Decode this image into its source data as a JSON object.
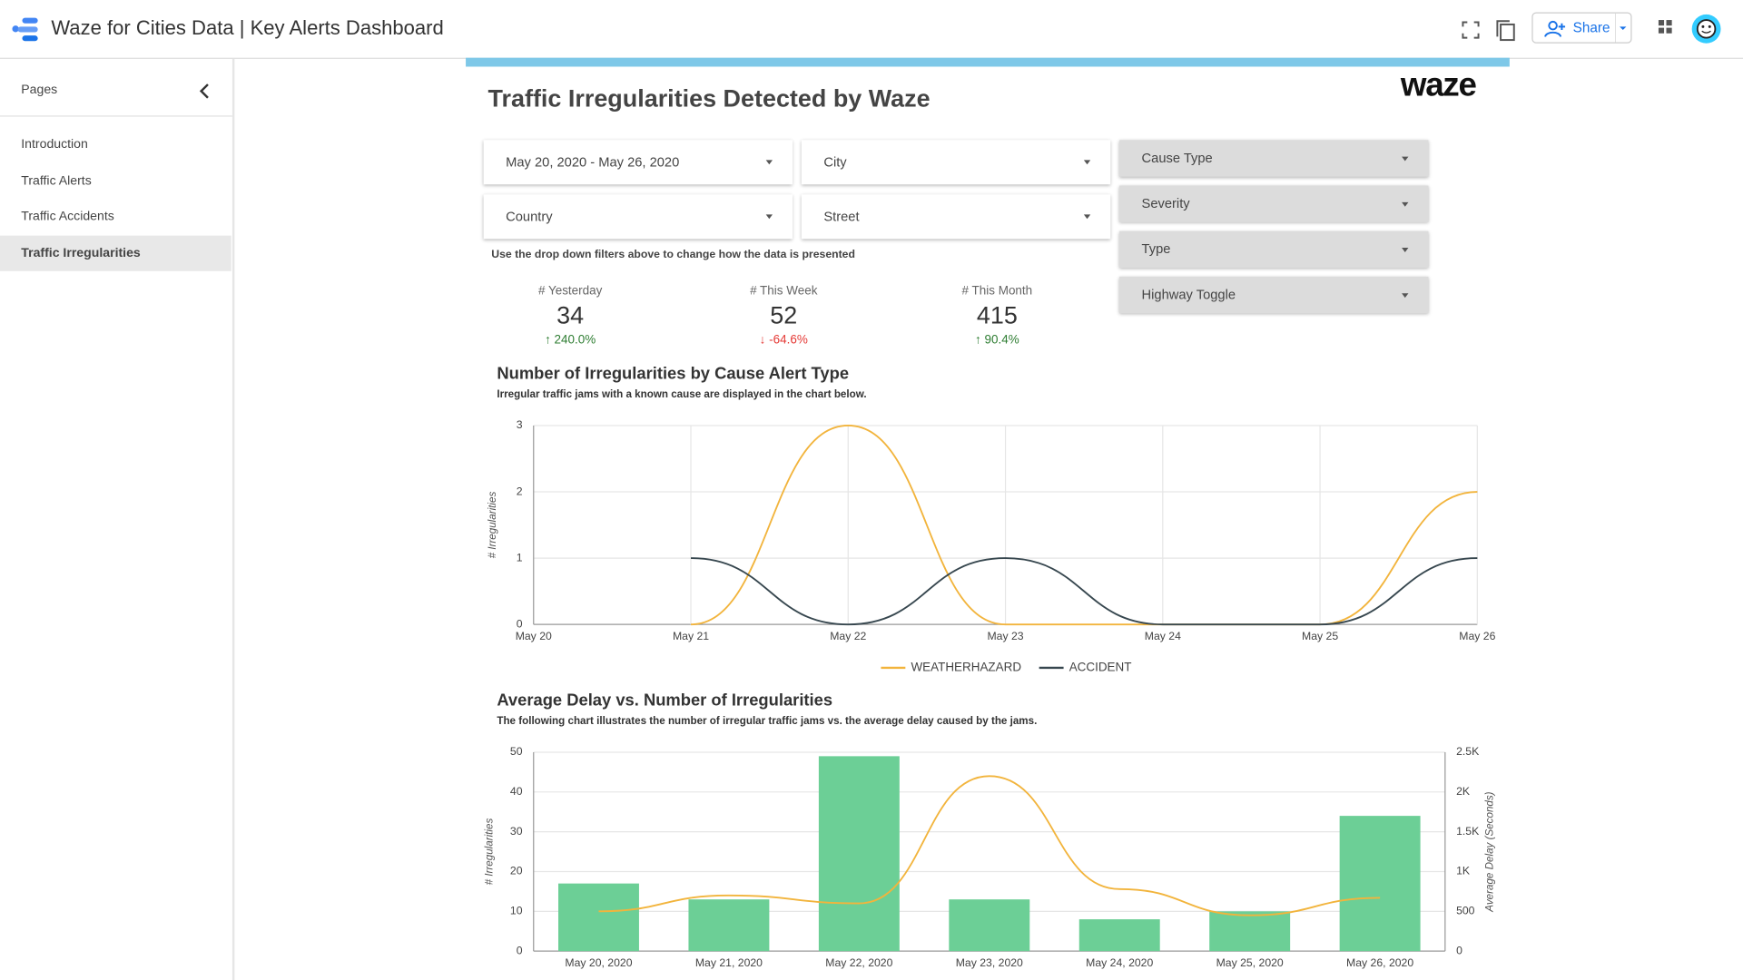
{
  "header": {
    "title": "Waze for Cities Data | Key Alerts Dashboard",
    "share": "Share"
  },
  "sidebar": {
    "heading": "Pages",
    "pages": [
      "Introduction",
      "Traffic Alerts",
      "Traffic Accidents",
      "Traffic Irregularities"
    ]
  },
  "report": {
    "title": "Traffic Irregularities Detected by Waze",
    "logo": "waze",
    "filters": [
      "May 20, 2020 - May 26, 2020",
      "City",
      "Country",
      "Street",
      "Cause Type",
      "Severity",
      "Type",
      "Highway Toggle"
    ],
    "note": "Use the drop down filters above to change how the data is presented",
    "scorecards": [
      {
        "label": "# Yesterday",
        "value": 34,
        "change": "240.0%"
      },
      {
        "label": "# This Week",
        "value": 52,
        "change": "-64.6%"
      },
      {
        "label": "# This Month",
        "value": 415,
        "change": "90.4%"
      }
    ]
  },
  "chart_data": [
    {
      "type": "line",
      "title": "Number of Irregularities by Cause Alert Type",
      "subtitle": "Irregular traffic jams with a known cause are displayed in the chart below.",
      "ylabel": "# Irregularities",
      "categories": [
        "May 20",
        "May 21",
        "May 22",
        "May 23",
        "May 24",
        "May 25",
        "May 26"
      ],
      "series": [
        {
          "name": "WEATHERHAZARD",
          "color": "#f2b43c",
          "values": [
            null,
            0,
            3,
            0,
            0,
            0,
            2
          ]
        },
        {
          "name": "ACCIDENT",
          "color": "#37474f",
          "values": [
            null,
            1,
            0,
            1,
            0,
            0,
            1
          ]
        }
      ],
      "ylim": [
        0,
        3
      ],
      "yticks": [
        0,
        1,
        2,
        3
      ],
      "grid": true,
      "legend": "bottom"
    },
    {
      "type": "bar",
      "title": "Average Delay vs. Number of Irregularities",
      "subtitle": "The following chart illustrates the number of irregular traffic jams vs. the average delay caused by the jams.",
      "ylabel": "# Irregularities",
      "y2label": "Average Delay (Seconds)",
      "categories": [
        "May 20, 2020",
        "May 21, 2020",
        "May 22, 2020",
        "May 23, 2020",
        "May 24, 2020",
        "May 25, 2020",
        "May 26, 2020"
      ],
      "series": [
        {
          "color": "#6ccf96",
          "values": [
            17,
            13,
            49,
            13,
            8,
            10,
            34
          ]
        },
        {
          "color": "#f2b43c",
          "type": "line",
          "axis": "y2",
          "values": [
            500,
            700,
            600,
            2200,
            780,
            450,
            670
          ]
        }
      ],
      "ylim": [
        0,
        50
      ],
      "yticks": [
        0,
        10,
        20,
        30,
        40,
        50
      ],
      "y2lim": [
        0,
        2500
      ],
      "y2ticks": [
        0,
        500,
        {
          "value": 1000,
          "label": "1K"
        },
        {
          "value": 1500,
          "label": "1.5K"
        },
        {
          "value": 2000,
          "label": "2K"
        },
        {
          "value": 2500,
          "label": "2.5K"
        }
      ],
      "grid": true
    }
  ]
}
